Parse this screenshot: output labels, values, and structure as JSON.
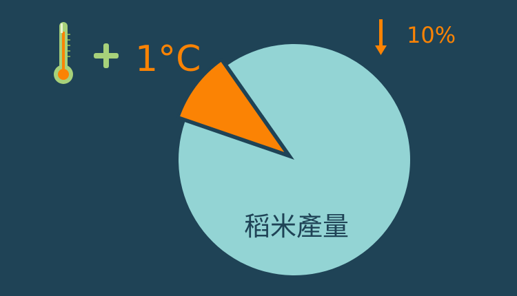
{
  "colors": {
    "background": "#1f4356",
    "pie_main": "#93d4d4",
    "pie_slice": "#fb8304",
    "plus": "#a7d17a",
    "thermo_body": "#a7d17a",
    "thermo_bulb": "#fb8304",
    "label_dark": "#1f4356"
  },
  "icons": {
    "thermometer": "thermometer-icon",
    "plus": "plus-icon",
    "down_arrow": "arrow-down-icon"
  },
  "header": {
    "temperature_change": "1°C"
  },
  "chart_data": {
    "type": "pie",
    "slices": [
      {
        "label": "稻米產量",
        "value": 90,
        "exploded": false
      },
      {
        "label": "10%",
        "value": 10,
        "exploded": true
      }
    ]
  }
}
